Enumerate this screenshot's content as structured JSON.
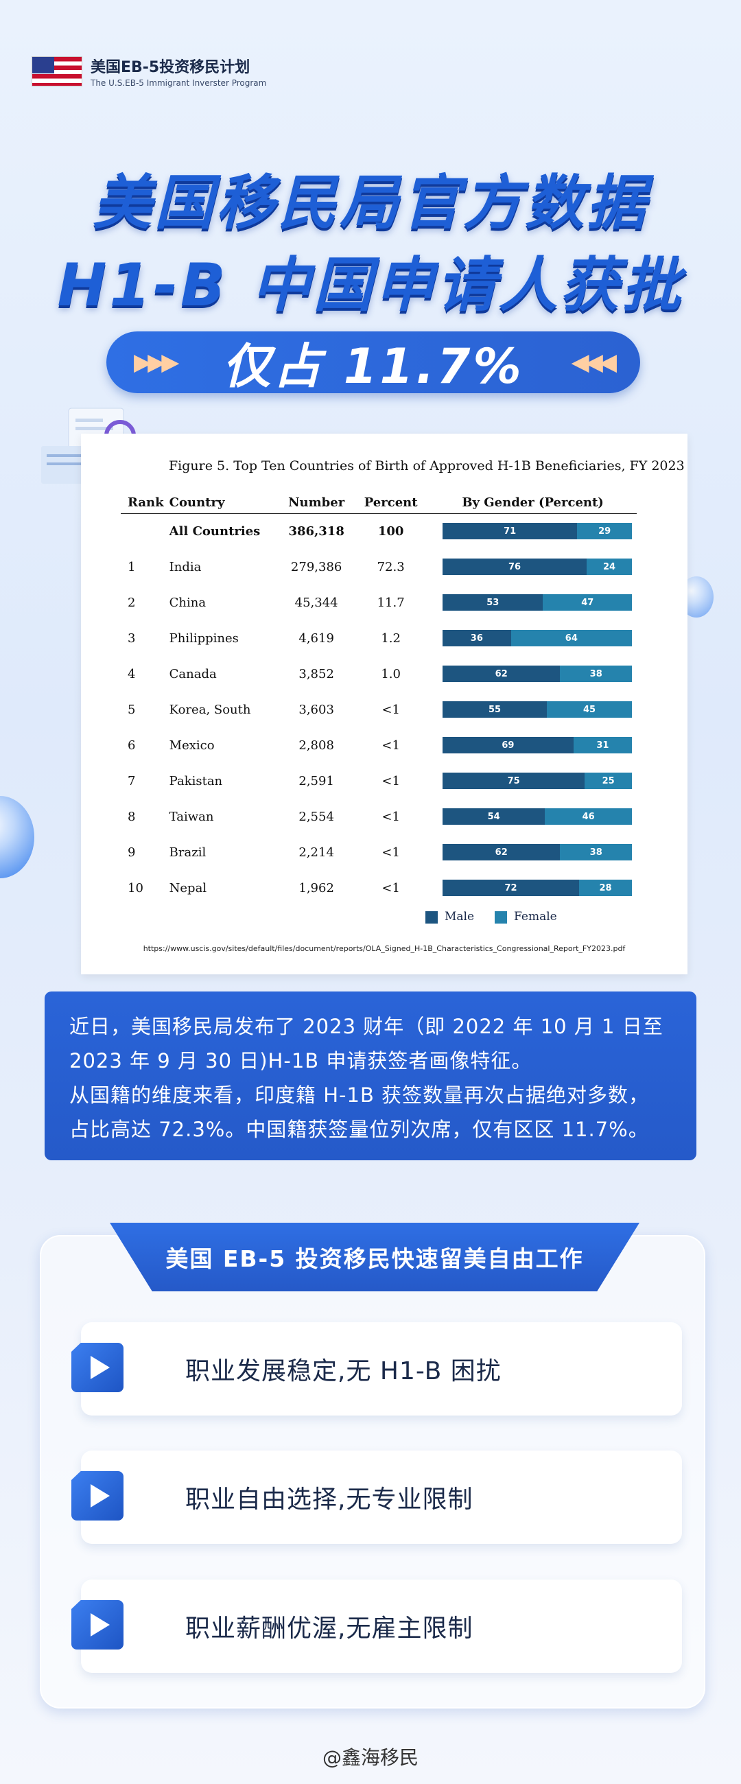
{
  "header": {
    "brand_cn": "美国EB-5投资移民计划",
    "brand_en": "The U.S.EB-5 Immigrant Inverster Program",
    "flag_icon": "us-flag-icon"
  },
  "hero": {
    "line1": "美国移民局官方数据",
    "line2": "H1-B 中国申请人获批",
    "pill_text": "仅占 11.7%",
    "arrows_left": "▶▶▶",
    "arrows_right": "◀◀◀"
  },
  "figure": {
    "title": "Figure 5. Top Ten Countries of Birth of Approved H-1B Beneficiaries, FY 2023",
    "headers": [
      "Rank",
      "Country",
      "Number",
      "Percent",
      "By Gender (Percent)"
    ],
    "rows": [
      {
        "rank": "",
        "country": "All Countries",
        "number": "386,318",
        "percent": "100",
        "male": 71,
        "female": 29
      },
      {
        "rank": "1",
        "country": "India",
        "number": "279,386",
        "percent": "72.3",
        "male": 76,
        "female": 24
      },
      {
        "rank": "2",
        "country": "China",
        "number": "45,344",
        "percent": "11.7",
        "male": 53,
        "female": 47
      },
      {
        "rank": "3",
        "country": "Philippines",
        "number": "4,619",
        "percent": "1.2",
        "male": 36,
        "female": 64
      },
      {
        "rank": "4",
        "country": "Canada",
        "number": "3,852",
        "percent": "1.0",
        "male": 62,
        "female": 38
      },
      {
        "rank": "5",
        "country": "Korea, South",
        "number": "3,603",
        "percent": "<1",
        "male": 55,
        "female": 45
      },
      {
        "rank": "6",
        "country": "Mexico",
        "number": "2,808",
        "percent": "<1",
        "male": 69,
        "female": 31
      },
      {
        "rank": "7",
        "country": "Pakistan",
        "number": "2,591",
        "percent": "<1",
        "male": 75,
        "female": 25
      },
      {
        "rank": "8",
        "country": "Taiwan",
        "number": "2,554",
        "percent": "<1",
        "male": 54,
        "female": 46
      },
      {
        "rank": "9",
        "country": "Brazil",
        "number": "2,214",
        "percent": "<1",
        "male": 62,
        "female": 38
      },
      {
        "rank": "10",
        "country": "Nepal",
        "number": "1,962",
        "percent": "<1",
        "male": 72,
        "female": 28
      }
    ],
    "legend": {
      "male": "Male",
      "female": "Female"
    },
    "colors": {
      "male": "#1d5580",
      "female": "#2583ad"
    },
    "url": "https://www.uscis.gov/sites/default/files/document/reports/OLA_Signed_H-1B_Characteristics_Congressional_Report_FY2023.pdf"
  },
  "summary": {
    "line1": "近日，美国移民局发布了 2023 财年（即 2022 年 10 月 1 日至",
    "line2": "2023 年 9 月 30 日)H-1B 申请获签者画像特征。",
    "line3": "从国籍的维度来看，印度籍 H-1B 获签数量再次占据绝对多数，",
    "line4": "占比高达 72.3%。中国籍获签量位列次席，仅有区区 11.7%。"
  },
  "panel": {
    "tab_title": "美国 EB-5 投资移民快速留美自由工作",
    "items": [
      {
        "label": "职业发展稳定,无 H1-B 困扰"
      },
      {
        "label": "职业自由选择,无专业限制"
      },
      {
        "label": "职业薪酬优渥,无雇主限制"
      }
    ]
  },
  "footer": {
    "watermark": "@鑫海移民"
  }
}
